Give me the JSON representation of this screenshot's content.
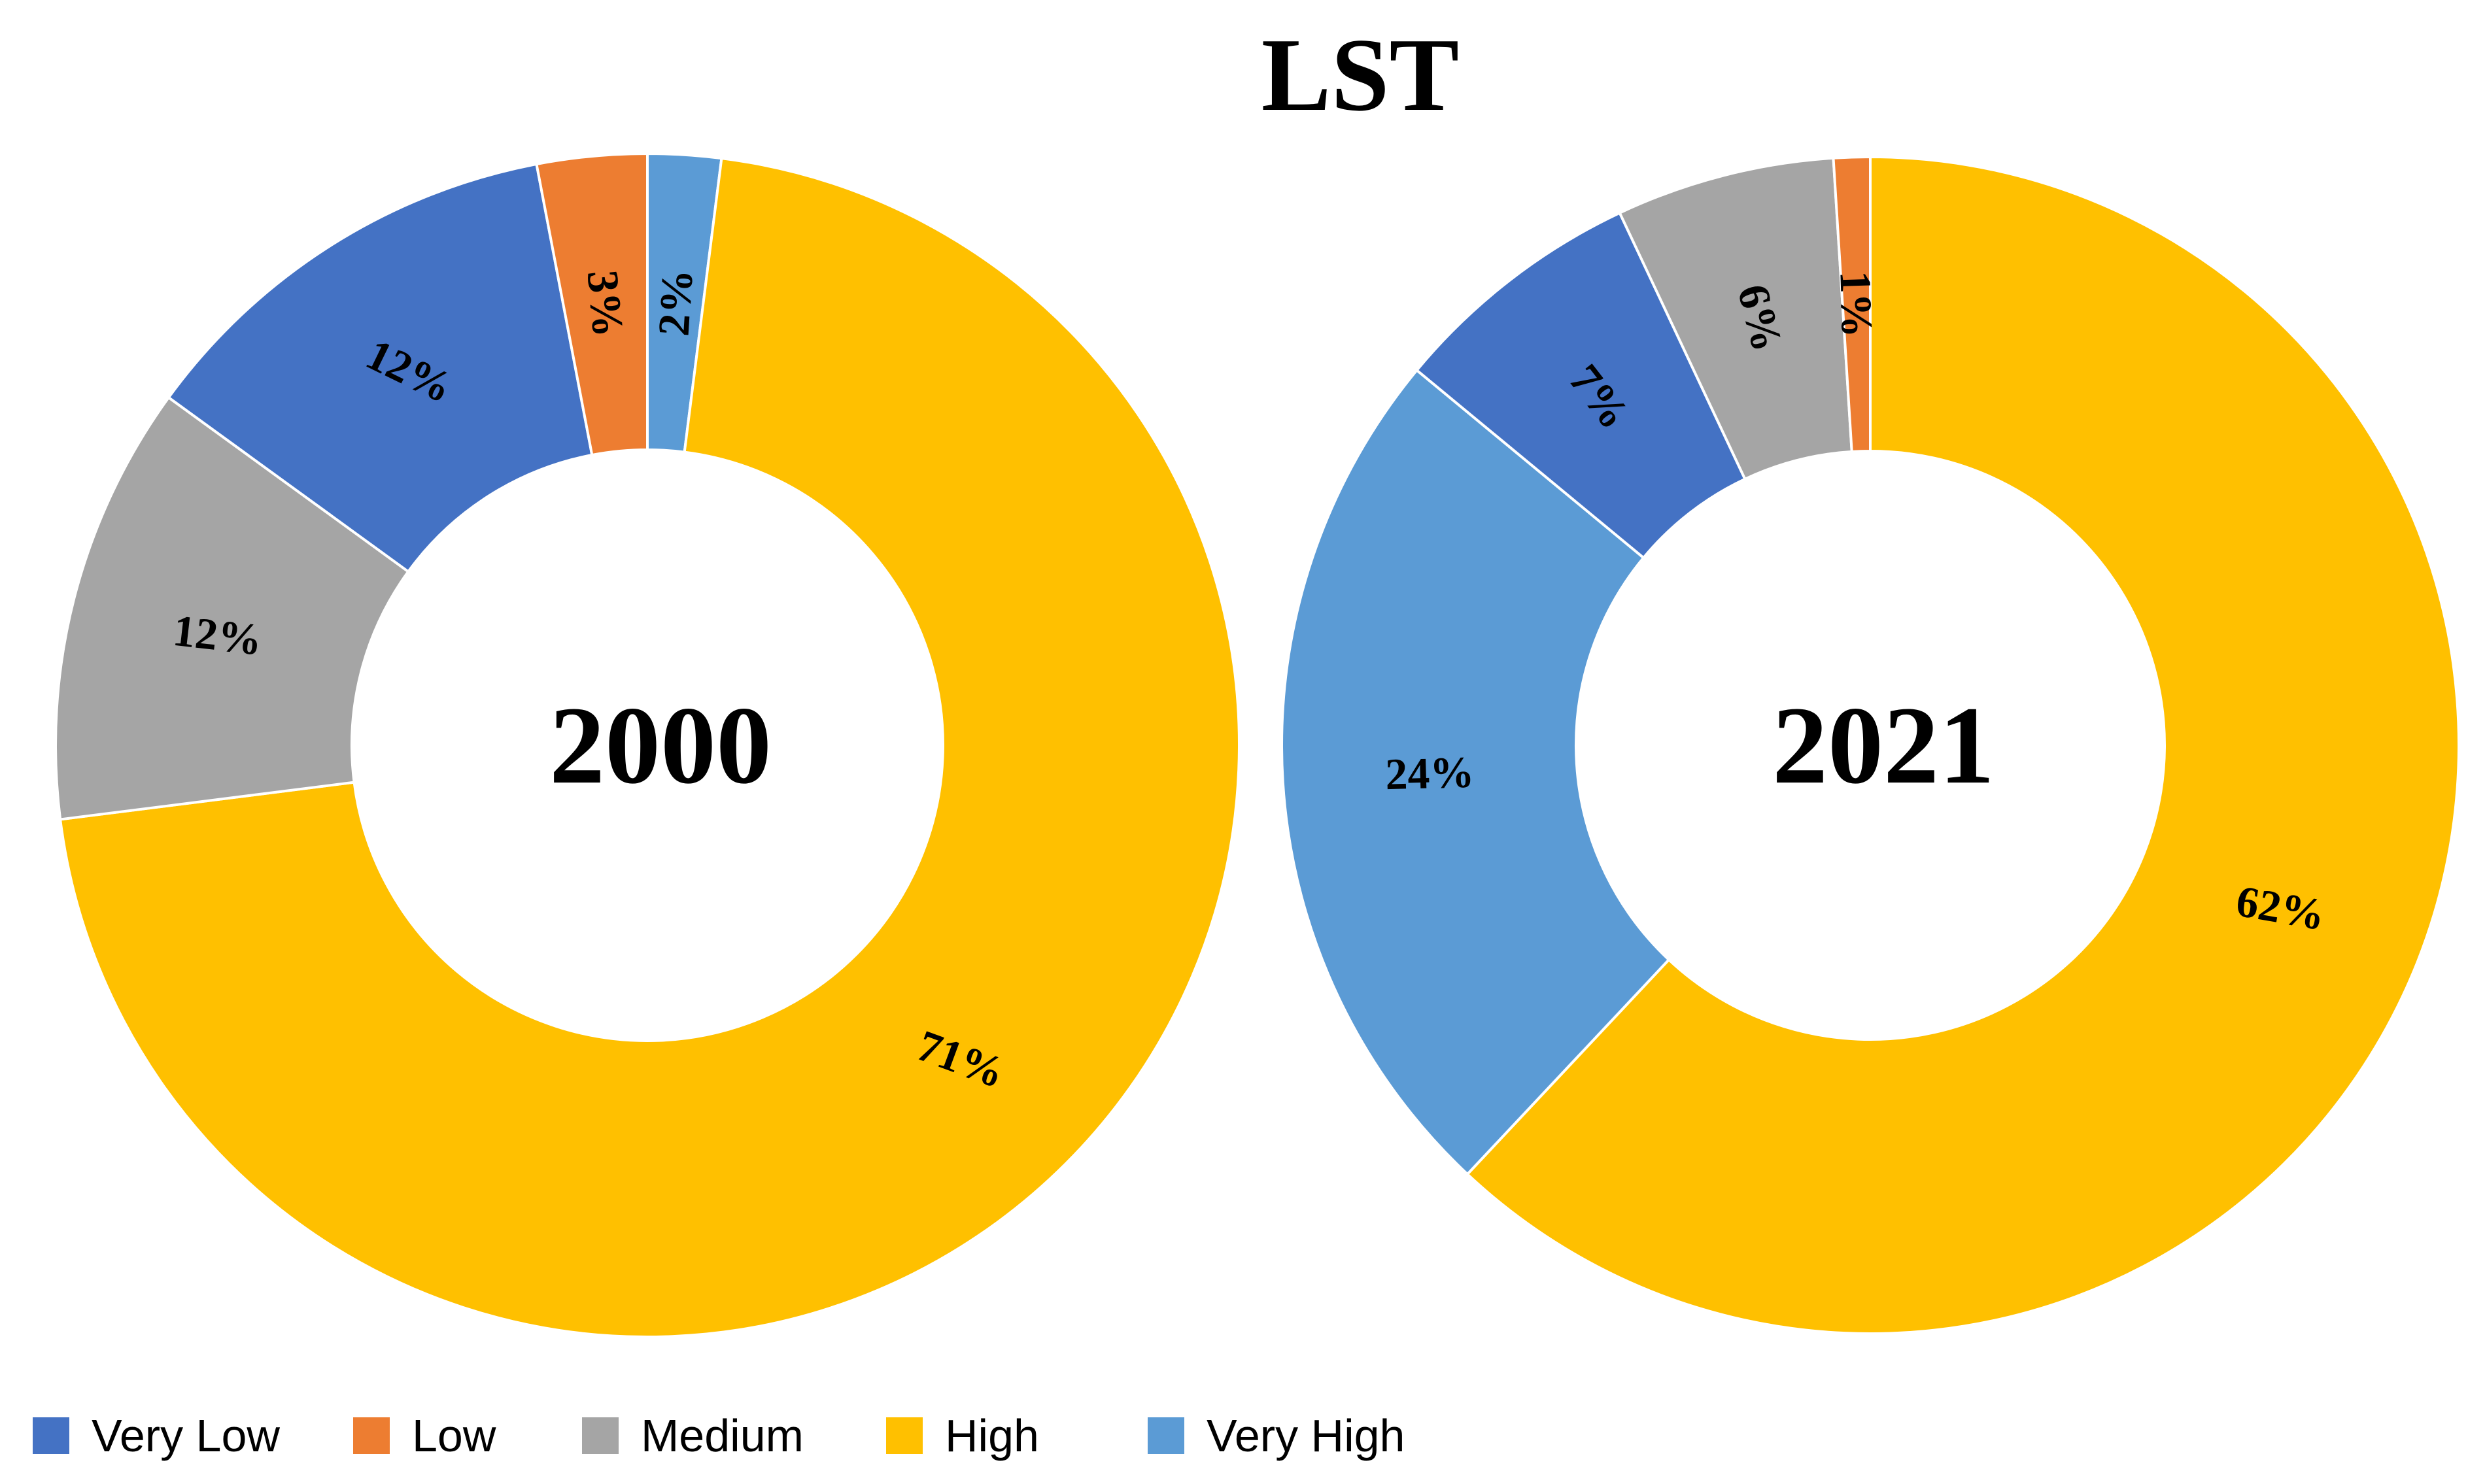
{
  "chart_data": {
    "type": "donut",
    "title": "LST",
    "categories": [
      "Very Low",
      "Low",
      "Medium",
      "High",
      "Very High"
    ],
    "colors": {
      "Very Low": "#4472C4",
      "Low": "#ED7D31",
      "Medium": "#A5A5A5",
      "High": "#FFC000",
      "Very High": "#5B9BD5"
    },
    "series": [
      {
        "name": "2000",
        "center_label": "2000",
        "slices": [
          {
            "category": "Very High",
            "value": 2,
            "label": "2%"
          },
          {
            "category": "High",
            "value": 71,
            "label": "71%"
          },
          {
            "category": "Medium",
            "value": 12,
            "label": "12%"
          },
          {
            "category": "Very Low",
            "value": 12,
            "label": "12%"
          },
          {
            "category": "Low",
            "value": 3,
            "label": "3%"
          }
        ]
      },
      {
        "name": "2021",
        "center_label": "2021",
        "slices": [
          {
            "category": "High",
            "value": 62,
            "label": "62%"
          },
          {
            "category": "Very High",
            "value": 24,
            "label": "24%"
          },
          {
            "category": "Very Low",
            "value": 7,
            "label": "7%"
          },
          {
            "category": "Medium",
            "value": 6,
            "label": "6%"
          },
          {
            "category": "Low",
            "value": 1,
            "label": "1%"
          }
        ]
      }
    ],
    "legend": {
      "position": "bottom-left",
      "entries": [
        "Very Low",
        "Low",
        "Medium",
        "High",
        "Very High"
      ]
    }
  }
}
